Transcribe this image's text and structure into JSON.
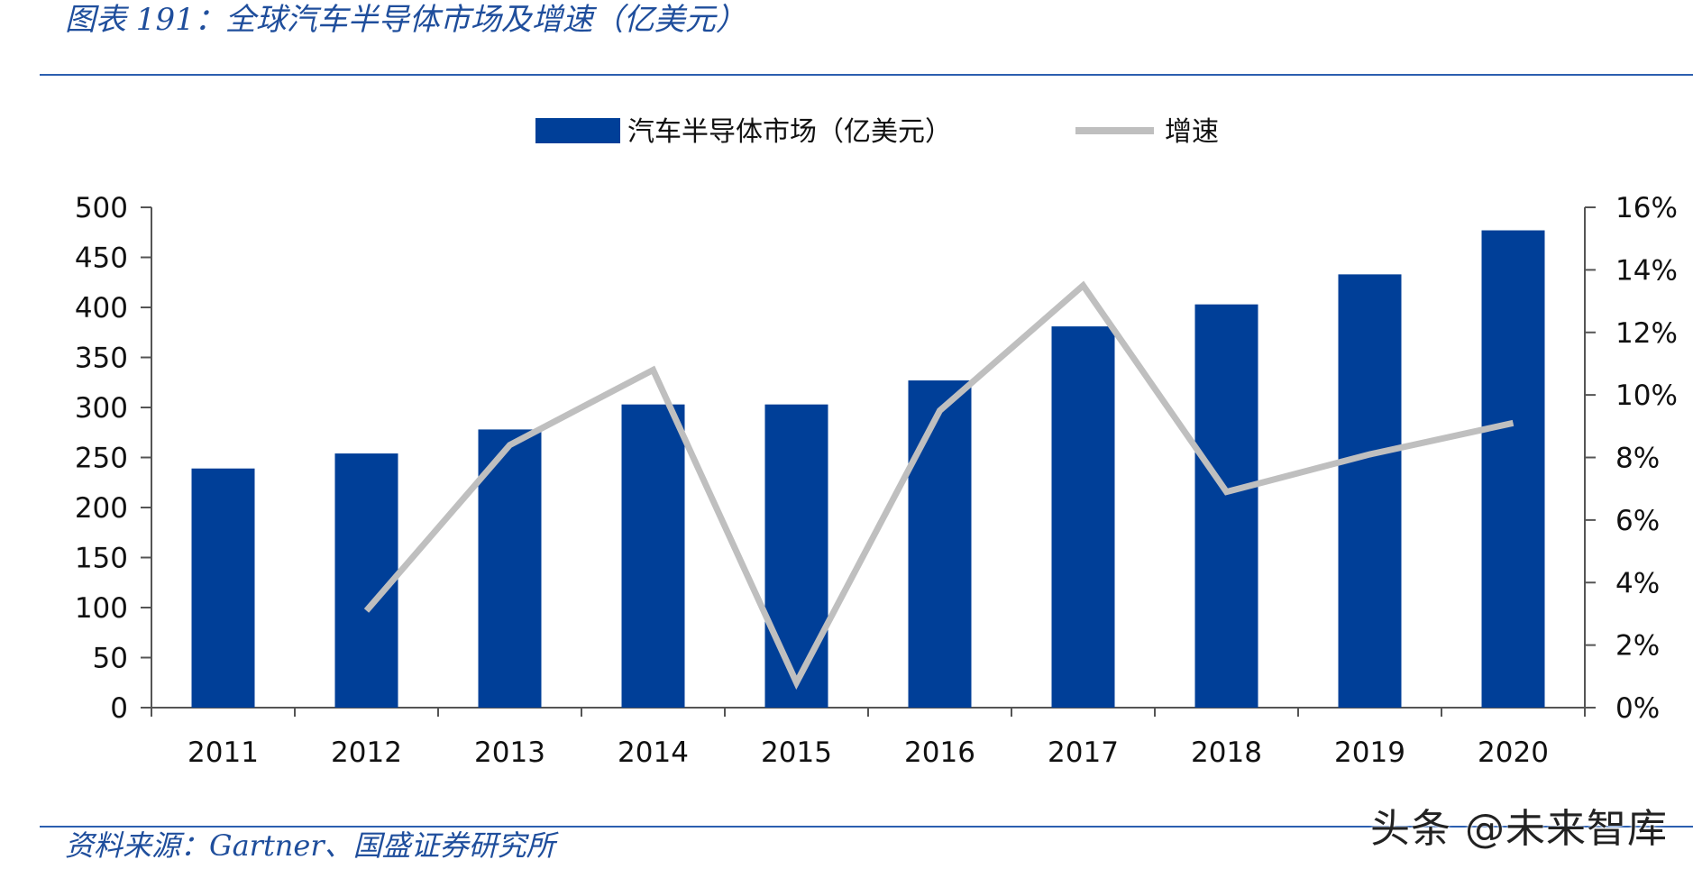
{
  "figure": {
    "title": "图表 191：全球汽车半导体市场及增速（亿美元）",
    "source": "资料来源：Gartner、国盛证券研究所",
    "watermark": "头条 @未来智库"
  },
  "chart_data": {
    "type": "bar",
    "title": "",
    "categories": [
      "2011",
      "2012",
      "2013",
      "2014",
      "2015",
      "2016",
      "2017",
      "2018",
      "2019",
      "2020"
    ],
    "series": [
      {
        "name": "汽车半导体市场（亿美元）",
        "type": "bar",
        "axis": "left",
        "color": "#003f98",
        "values": [
          239,
          254,
          278,
          303,
          303,
          327,
          381,
          403,
          433,
          477
        ]
      },
      {
        "name": "增速",
        "type": "line",
        "axis": "right",
        "color": "#bfbfbf",
        "values": [
          null,
          3.1,
          8.4,
          10.8,
          0.8,
          9.5,
          13.5,
          6.9,
          8.1,
          9.1
        ]
      }
    ],
    "y_left": {
      "ylim": [
        0,
        500
      ],
      "ticks": [
        0,
        50,
        100,
        150,
        200,
        250,
        300,
        350,
        400,
        450,
        500
      ]
    },
    "y_right": {
      "ylim": [
        0,
        16
      ],
      "ticks": [
        0,
        2,
        4,
        6,
        8,
        10,
        12,
        14,
        16
      ],
      "tick_labels": [
        "0%",
        "2%",
        "4%",
        "6%",
        "8%",
        "10%",
        "12%",
        "14%",
        "16%"
      ]
    },
    "legend": {
      "placement": "top-center"
    },
    "grid": false
  }
}
